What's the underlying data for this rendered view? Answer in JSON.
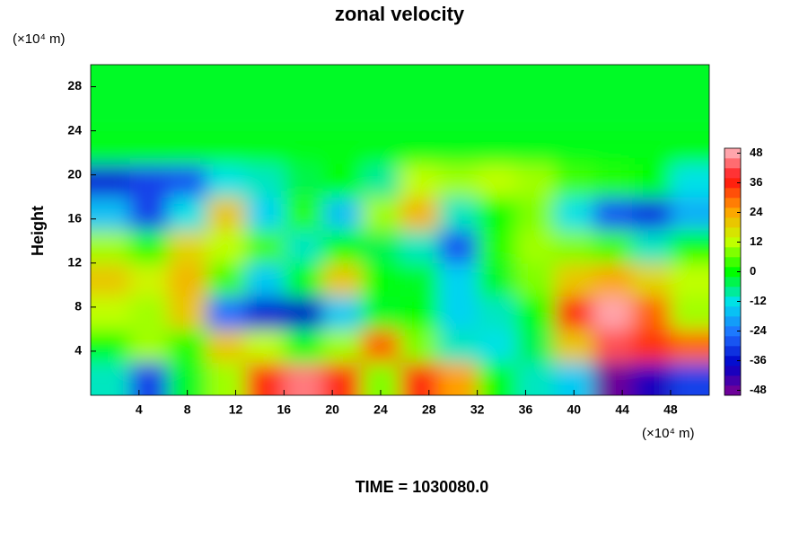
{
  "chart_data": {
    "type": "heatmap",
    "title": "zonal velocity",
    "y_label": "Height",
    "y_unit": "(×10⁴ m)",
    "x_unit": "(×10⁴ m)",
    "annotation": "TIME = 1030080.0",
    "x": [
      1.6,
      4.8,
      8,
      11.2,
      14.4,
      17.6,
      20.8,
      24,
      27.2,
      30.4,
      33.6,
      36.8,
      40,
      43.2,
      46.4,
      49.6
    ],
    "y": [
      1.5,
      4.5,
      7.5,
      10.5,
      13.5,
      16.5,
      19.5,
      22.5,
      25.5,
      28.5
    ],
    "z": [
      [
        -10,
        -30,
        -2,
        10,
        35,
        45,
        35,
        8,
        35,
        25,
        0,
        -10,
        -15,
        -48,
        -40,
        -30
      ],
      [
        0,
        10,
        2,
        20,
        12,
        0,
        10,
        30,
        8,
        -10,
        -12,
        -4,
        20,
        42,
        35,
        30
      ],
      [
        12,
        10,
        20,
        -25,
        -35,
        -38,
        -15,
        -2,
        0,
        -14,
        -10,
        0,
        35,
        48,
        30,
        10
      ],
      [
        20,
        14,
        22,
        4,
        -15,
        0,
        20,
        0,
        -2,
        -14,
        -2,
        8,
        20,
        24,
        18,
        12
      ],
      [
        10,
        2,
        18,
        12,
        4,
        -10,
        0,
        -4,
        -10,
        -28,
        2,
        10,
        8,
        4,
        -10,
        0
      ],
      [
        -16,
        -30,
        -12,
        20,
        -14,
        2,
        -16,
        10,
        22,
        -10,
        0,
        8,
        -12,
        -28,
        -32,
        -18
      ],
      [
        -34,
        -30,
        -28,
        -12,
        -10,
        -4,
        0,
        -8,
        12,
        10,
        12,
        10,
        4,
        2,
        0,
        -12
      ],
      [
        -1,
        -1,
        -1,
        -1,
        -1,
        -1,
        -1,
        -1,
        -1,
        -1,
        -1,
        -1,
        -1,
        -1,
        -1,
        -1
      ],
      [
        -2,
        -2,
        -2,
        -2,
        -2,
        -2,
        -2,
        -2,
        -2,
        -2,
        -2,
        -2,
        -2,
        -2,
        -2,
        -2
      ],
      [
        -2,
        -2,
        -2,
        -2,
        -2,
        -2,
        -2,
        -2,
        -2,
        -2,
        -2,
        -2,
        -2,
        -2,
        -2,
        -2
      ]
    ],
    "xlim": [
      0,
      51.2
    ],
    "xticks": [
      4,
      8,
      12,
      16,
      20,
      24,
      28,
      32,
      36,
      40,
      44,
      48
    ],
    "ylim": [
      0,
      30
    ],
    "yticks": [
      4,
      8,
      12,
      16,
      20,
      24,
      28
    ],
    "clim": [
      -50,
      50
    ],
    "cbar_ticks": [
      -48,
      -36,
      -24,
      -12,
      0,
      12,
      24,
      36,
      48
    ],
    "colormap": [
      "#800090",
      "#0000c8",
      "#2070ff",
      "#00e0f0",
      "#00ff00",
      "#c8ff00",
      "#ffa000",
      "#ff1010",
      "#ffc0c8"
    ]
  }
}
